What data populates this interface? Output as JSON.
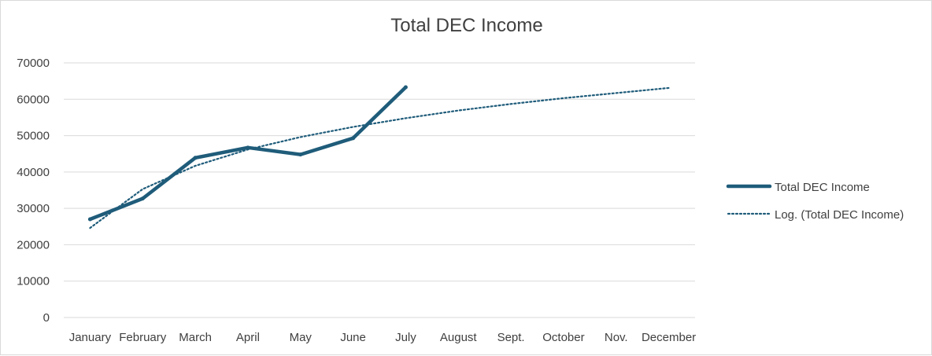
{
  "chart_data": {
    "type": "line",
    "title": "Total DEC Income",
    "categories": [
      "January",
      "February",
      "March",
      "April",
      "May",
      "June",
      "July",
      "August",
      "Sept.",
      "October",
      "Nov.",
      "December"
    ],
    "series": [
      {
        "name": "Total DEC Income",
        "values": [
          27000,
          32700,
          43900,
          46700,
          44800,
          49300,
          63300,
          null,
          null,
          null,
          null,
          null
        ],
        "color": "#1f5c7a",
        "style": "solid"
      },
      {
        "name": "Log. (Total DEC Income)",
        "values": [
          24600,
          35300,
          41700,
          46200,
          49600,
          52400,
          54800,
          56900,
          58700,
          60300,
          61700,
          63100
        ],
        "color": "#1f5c7a",
        "style": "dotted"
      }
    ],
    "ylim": [
      0,
      70000
    ],
    "yticks": [
      0,
      10000,
      20000,
      30000,
      40000,
      50000,
      60000,
      70000
    ],
    "grid": true,
    "legend_position": "right"
  }
}
